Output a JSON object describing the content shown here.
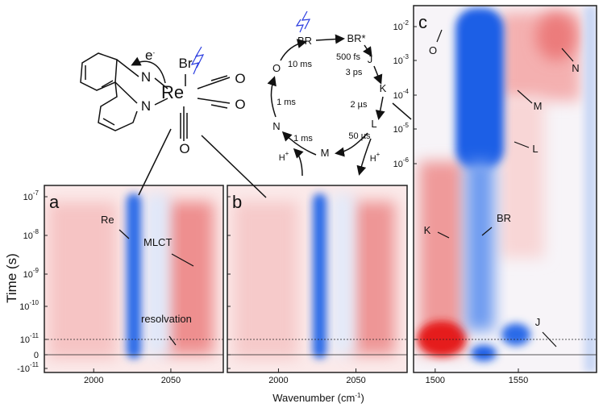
{
  "figure": {
    "axis_titles": {
      "y": "Time (s)",
      "x": {
        "text": "Wavenumber (cm",
        "sup": "-1",
        "close": ")"
      }
    },
    "molecule": {
      "electron": {
        "text": "e",
        "sup": "-"
      },
      "atoms": [
        "Br",
        "Re",
        "N",
        "N",
        "O",
        "O",
        "O"
      ]
    },
    "photocycle": {
      "states": [
        "BR",
        "BR*",
        "J",
        "K",
        "L",
        "M",
        "N",
        "O"
      ],
      "times": [
        "500 fs",
        "3 ps",
        "2 µs",
        "50 µs",
        "1 ms",
        "1 ms",
        "10 ms"
      ],
      "protons": [
        {
          "text": "H",
          "sup": "+"
        },
        {
          "text": "H",
          "sup": "+"
        }
      ]
    },
    "time_ticks": [
      {
        "base": "10",
        "exp": "-7"
      },
      {
        "base": "10",
        "exp": "-8"
      },
      {
        "base": "10",
        "exp": "-9"
      },
      {
        "base": "10",
        "exp": "-10"
      },
      {
        "base": "10",
        "exp": "-11"
      },
      {
        "base": "0",
        "exp": ""
      },
      {
        "base": "-10",
        "exp": "-11"
      }
    ],
    "time_ticks_c": [
      {
        "base": "10",
        "exp": "-2"
      },
      {
        "base": "10",
        "exp": "-3"
      },
      {
        "base": "10",
        "exp": "-4"
      },
      {
        "base": "10",
        "exp": "-5"
      },
      {
        "base": "10",
        "exp": "-6"
      }
    ],
    "panels": [
      {
        "label": "a",
        "xlim": [
          1968,
          2084
        ],
        "xticks": [
          2000,
          2050
        ],
        "annotations": [
          "Re",
          "MLCT",
          "resolvation"
        ]
      },
      {
        "label": "b",
        "xlim": [
          1967,
          2083
        ],
        "xticks": [
          2000,
          2050
        ],
        "annotations": []
      },
      {
        "label": "c",
        "xlim": [
          1487,
          1597
        ],
        "xticks": [
          1500,
          1550
        ],
        "annotations": [
          "O",
          "N",
          "M",
          "L",
          "K",
          "BR",
          "J"
        ]
      }
    ]
  }
}
